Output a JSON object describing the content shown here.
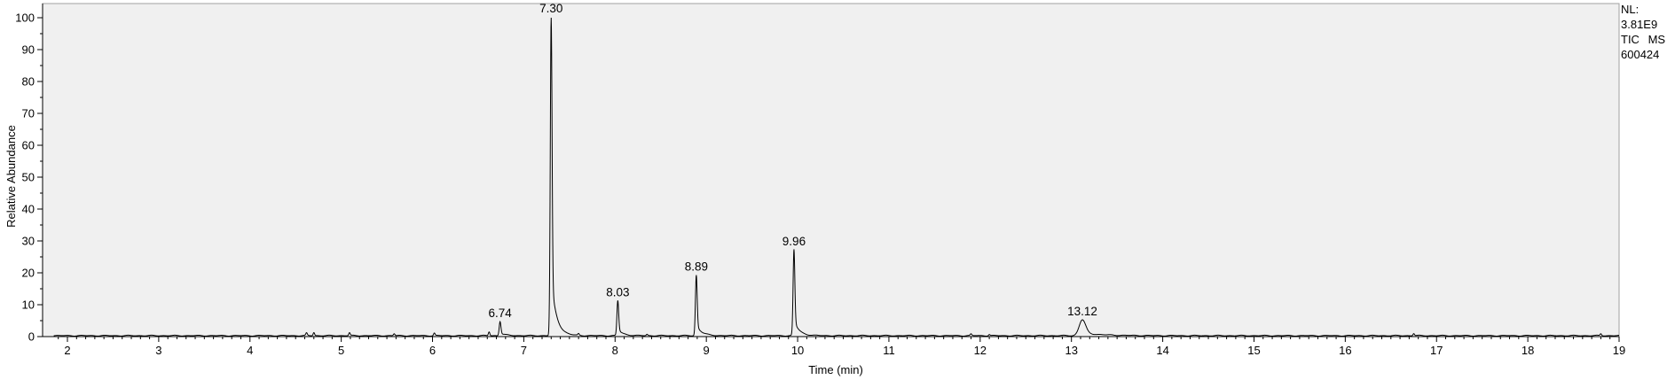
{
  "chart_data": {
    "type": "line",
    "xlabel": "Time (min)",
    "ylabel": "Relative Abundance",
    "xlim": [
      1.85,
      19.0
    ],
    "ylim": [
      0,
      100
    ],
    "x_ticks": [
      2,
      3,
      4,
      5,
      6,
      7,
      8,
      9,
      10,
      11,
      12,
      13,
      14,
      15,
      16,
      17,
      18,
      19
    ],
    "y_ticks": [
      0,
      10,
      20,
      30,
      40,
      50,
      60,
      70,
      80,
      90,
      100
    ],
    "grid": false,
    "line_color": "#000000",
    "background_color": "#f0f0f0",
    "peaks": [
      {
        "x": 6.74,
        "y": 4.5,
        "label": "6.74"
      },
      {
        "x": 7.3,
        "y": 100,
        "label": "7.30"
      },
      {
        "x": 8.03,
        "y": 11,
        "label": "8.03"
      },
      {
        "x": 8.89,
        "y": 19,
        "label": "8.89"
      },
      {
        "x": 9.96,
        "y": 27,
        "label": "9.96"
      },
      {
        "x": 13.12,
        "y": 5,
        "label": "13.12"
      }
    ],
    "minor_peaks": [
      {
        "x": 4.62,
        "y": 0.8
      },
      {
        "x": 4.7,
        "y": 1.0
      },
      {
        "x": 5.09,
        "y": 0.9
      },
      {
        "x": 5.58,
        "y": 0.6
      },
      {
        "x": 6.02,
        "y": 0.8
      },
      {
        "x": 6.62,
        "y": 1.2
      },
      {
        "x": 7.6,
        "y": 0.5
      },
      {
        "x": 8.35,
        "y": 0.4
      },
      {
        "x": 11.9,
        "y": 0.5
      },
      {
        "x": 12.1,
        "y": 0.4
      },
      {
        "x": 16.75,
        "y": 0.7
      },
      {
        "x": 18.8,
        "y": 0.6
      }
    ]
  },
  "info": {
    "nl_label": "NL:",
    "nl_value": "3.81E9",
    "scan_type": "TIC",
    "scan_mode": "MS",
    "sample_name": "600424"
  }
}
